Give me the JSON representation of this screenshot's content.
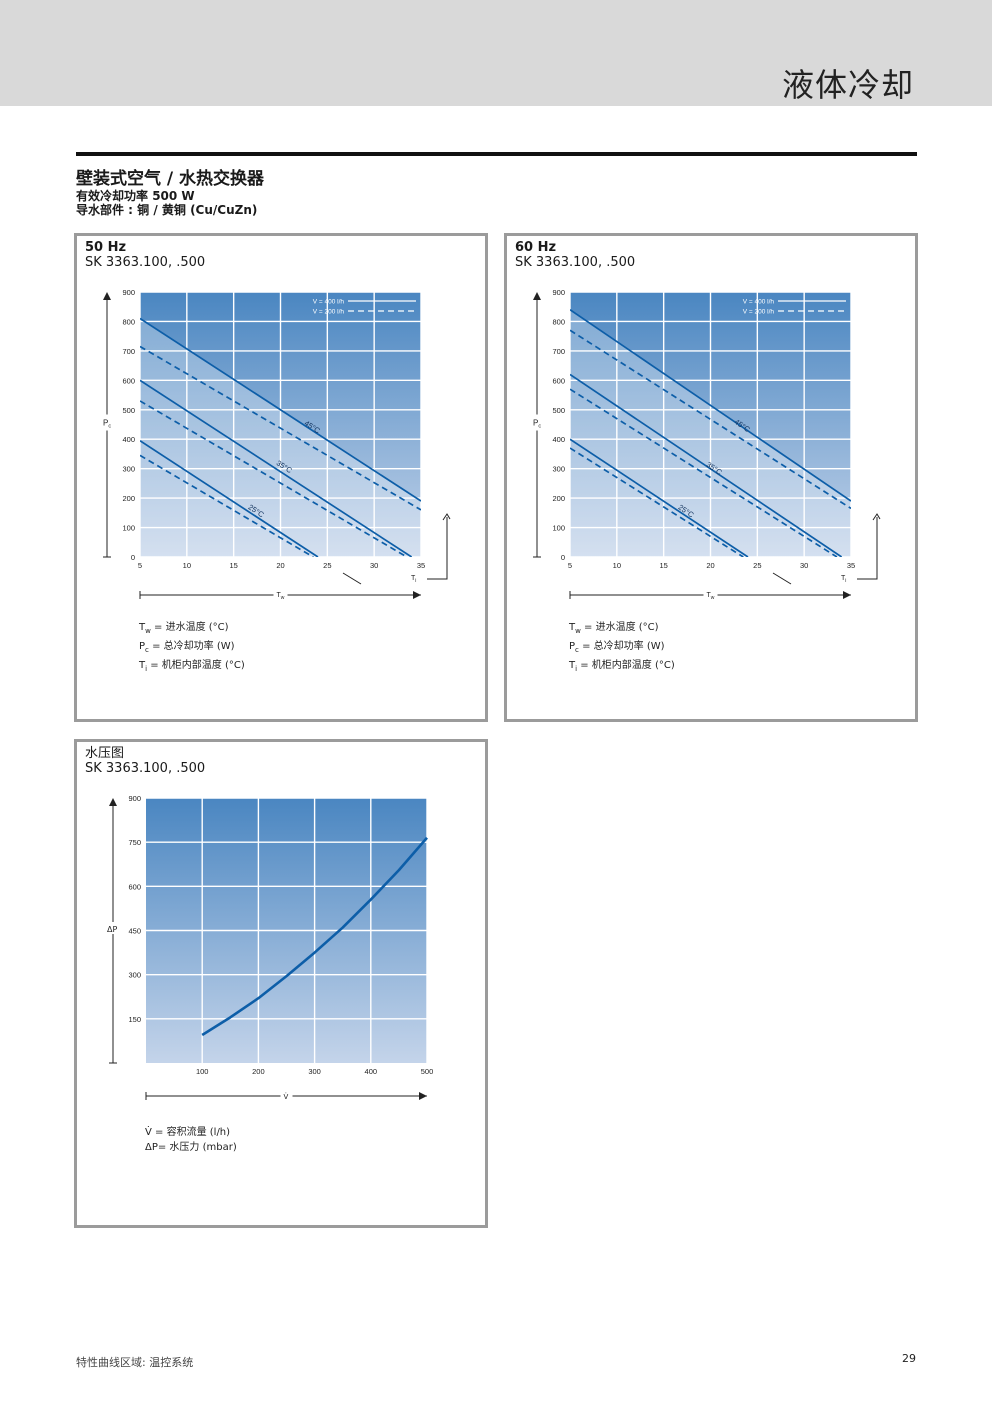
{
  "header": {
    "section_title": "液体冷却"
  },
  "product": {
    "title": "壁装式空气 / 水热交换器",
    "line2_prefix": "有效冷却功率 ",
    "line2_value": "500 W",
    "line3_prefix": "导水部件 : ",
    "line3_value": "铜 / 黄铜 (Cu/CuZn)"
  },
  "colors": {
    "plot_top": "#4a86c1",
    "plot_bottom": "#c4d4ea",
    "curve": "#0d5ea8",
    "frame": "#9b9b9b"
  },
  "chart_data": [
    {
      "id": "50hz",
      "type": "line",
      "title": "50 Hz",
      "subtitle": "SK 3363.100, .500",
      "xlabel": "Tw",
      "ylabel": "Pc",
      "ilabel": "Ti",
      "xlim": [
        5,
        35
      ],
      "ylim": [
        0,
        900
      ],
      "xticks": [
        "5",
        "10",
        "15",
        "20",
        "25",
        "30",
        "35"
      ],
      "yticks": [
        "0",
        "100",
        "200",
        "300",
        "400",
        "500",
        "600",
        "700",
        "800",
        "900"
      ],
      "flow_legend": [
        "V = 400 l/h",
        "V = 200 l/h"
      ],
      "series": [
        {
          "name": "45°C",
          "label": "45°C",
          "flow": "V = 400 l/h",
          "dashed": false,
          "x": [
            5,
            35
          ],
          "y": [
            810,
            190
          ]
        },
        {
          "name": "45°C",
          "flow": "V = 200 l/h",
          "dashed": true,
          "x": [
            5,
            35
          ],
          "y": [
            715,
            160
          ]
        },
        {
          "name": "35°C",
          "label": "35°C",
          "flow": "V = 400 l/h",
          "dashed": false,
          "x": [
            5,
            34
          ],
          "y": [
            600,
            0
          ]
        },
        {
          "name": "35°C",
          "flow": "V = 200 l/h",
          "dashed": true,
          "x": [
            5,
            33.5
          ],
          "y": [
            530,
            0
          ]
        },
        {
          "name": "25°C",
          "label": "25°C",
          "flow": "V = 400 l/h",
          "dashed": false,
          "x": [
            5,
            24
          ],
          "y": [
            395,
            0
          ]
        },
        {
          "name": "25°C",
          "flow": "V = 200 l/h",
          "dashed": true,
          "x": [
            5,
            23.5
          ],
          "y": [
            345,
            0
          ]
        }
      ],
      "labels_at": [
        {
          "text": "45°C",
          "x": 22.5,
          "y": 450
        },
        {
          "text": "35°C",
          "x": 19.5,
          "y": 315
        },
        {
          "text": "25°C",
          "x": 16.5,
          "y": 165
        }
      ],
      "legend_lines": [
        {
          "sym": "T",
          "sub": "w",
          "text": "= 进水温度 (°C)"
        },
        {
          "sym": "P",
          "sub": "c",
          "text": "= 总冷却功率 (W)"
        },
        {
          "sym": "T",
          "sub": "i",
          "text": " = 机柜内部温度 (°C)"
        }
      ]
    },
    {
      "id": "60hz",
      "type": "line",
      "title": "60 Hz",
      "subtitle": "SK 3363.100, .500",
      "xlabel": "Tw",
      "ylabel": "Pc",
      "ilabel": "Ti",
      "xlim": [
        5,
        35
      ],
      "ylim": [
        0,
        900
      ],
      "xticks": [
        "5",
        "10",
        "15",
        "20",
        "25",
        "30",
        "35"
      ],
      "yticks": [
        "0",
        "100",
        "200",
        "300",
        "400",
        "500",
        "600",
        "700",
        "800",
        "900"
      ],
      "flow_legend": [
        "V = 400 l/h",
        "V = 200 l/h"
      ],
      "series": [
        {
          "name": "45°C",
          "label": "45°C",
          "flow": "V = 400 l/h",
          "dashed": false,
          "x": [
            5,
            35
          ],
          "y": [
            840,
            190
          ]
        },
        {
          "name": "45°C",
          "flow": "V = 200 l/h",
          "dashed": true,
          "x": [
            5,
            35
          ],
          "y": [
            770,
            165
          ]
        },
        {
          "name": "35°C",
          "label": "35°C",
          "flow": "V = 400 l/h",
          "dashed": false,
          "x": [
            5,
            34
          ],
          "y": [
            620,
            0
          ]
        },
        {
          "name": "35°C",
          "flow": "V = 200 l/h",
          "dashed": true,
          "x": [
            5,
            33.5
          ],
          "y": [
            570,
            0
          ]
        },
        {
          "name": "25°C",
          "label": "25°C",
          "flow": "V = 400 l/h",
          "dashed": false,
          "x": [
            5,
            24
          ],
          "y": [
            400,
            0
          ]
        },
        {
          "name": "25°C",
          "flow": "V = 200 l/h",
          "dashed": true,
          "x": [
            5,
            23.5
          ],
          "y": [
            370,
            0
          ]
        }
      ],
      "labels_at": [
        {
          "text": "45°C",
          "x": 22.5,
          "y": 455
        },
        {
          "text": "35°C",
          "x": 19.5,
          "y": 310
        },
        {
          "text": "25°C",
          "x": 16.5,
          "y": 165
        }
      ],
      "legend_lines": [
        {
          "sym": "T",
          "sub": "w",
          "text": "= 进水温度 (°C)"
        },
        {
          "sym": "P",
          "sub": "c",
          "text": "= 总冷却功率 (W)"
        },
        {
          "sym": "T",
          "sub": "i",
          "text": " = 机柜内部温度 (°C)"
        }
      ]
    },
    {
      "id": "pressure",
      "type": "line",
      "title": "水压图",
      "subtitle": "SK 3363.100, .500",
      "xlabel": "V̇",
      "ylabel": "ΔP",
      "xlim": [
        0,
        500
      ],
      "ylim": [
        0,
        900
      ],
      "xticks": [
        "100",
        "200",
        "300",
        "400",
        "500"
      ],
      "yticks": [
        "150",
        "300",
        "450",
        "600",
        "750",
        "900"
      ],
      "series": [
        {
          "name": "ΔP",
          "dashed": false,
          "x": [
            100,
            150,
            200,
            250,
            300,
            350,
            400,
            450,
            500
          ],
          "y": [
            95,
            155,
            220,
            295,
            375,
            460,
            555,
            655,
            765
          ]
        }
      ],
      "legend_lines": [
        {
          "sym": "V̇",
          "sub": "",
          "text": "  = 容积流量 (l/h)"
        },
        {
          "sym": "ΔP",
          "sub": "",
          "text": "= 水压力 (mbar)"
        }
      ]
    }
  ],
  "footer": {
    "text": "特性曲线区域:  温控系统",
    "page": "29"
  }
}
